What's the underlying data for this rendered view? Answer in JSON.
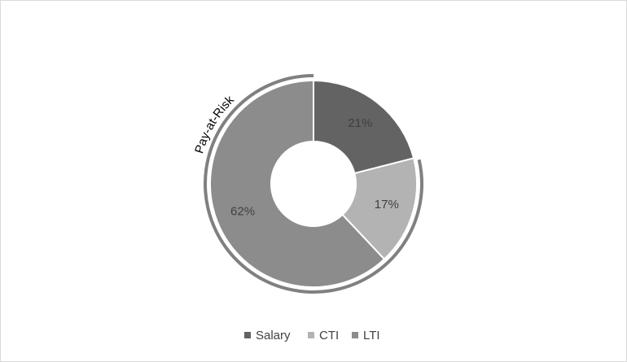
{
  "chart_data": {
    "type": "donut",
    "categories": [
      "Salary",
      "CTI",
      "LTI"
    ],
    "values": [
      21,
      17,
      62
    ],
    "value_labels": [
      "21%",
      "17%",
      "62%"
    ],
    "colors": [
      "#636363",
      "#b3b3b3",
      "#8c8c8c"
    ],
    "annotation": "Pay-at-Risk",
    "legend": "bottom"
  }
}
